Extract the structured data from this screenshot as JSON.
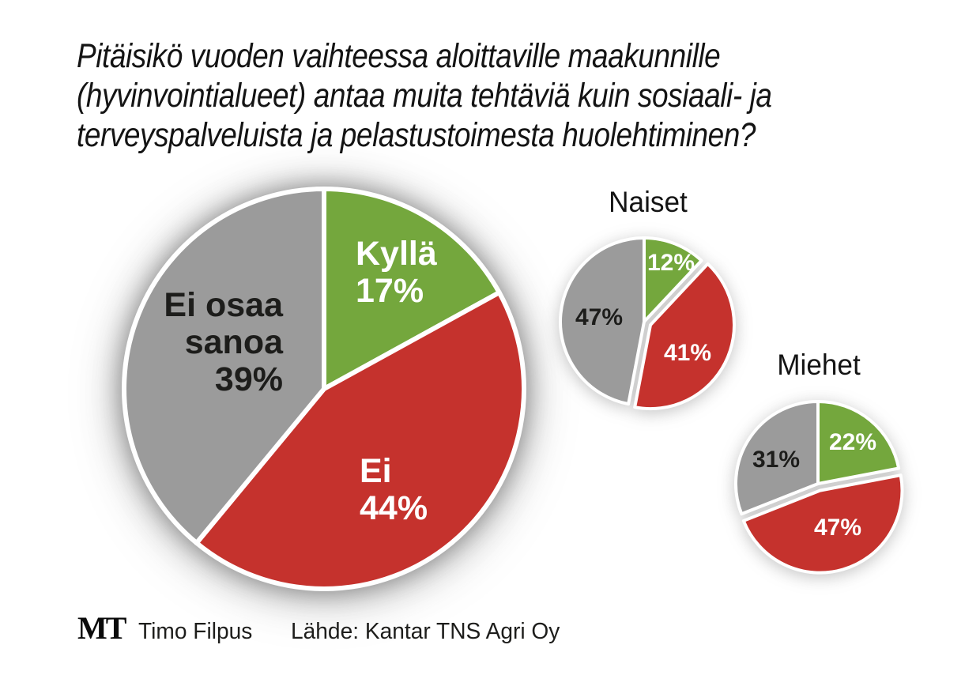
{
  "title": {
    "lines": [
      "Pitäisikö vuoden vaihteessa aloittaville maakunnille",
      "(hyvinvointialueet) antaa muita tehtäviä kuin sosiaali- ja",
      "terveyspalveluista ja pelastustoimesta huolehtiminen?"
    ]
  },
  "colors": {
    "yes": "#74a73d",
    "no": "#c5322d",
    "neutral": "#9b9b9b",
    "slice_border": "#ffffff",
    "label_light": "#ffffff",
    "label_dark": "#1d1d1b"
  },
  "chart_data": [
    {
      "type": "pie",
      "name": "kaikki",
      "title": "",
      "start_angle_deg": -90,
      "direction": "clockwise",
      "slices": [
        {
          "label": "Kyllä",
          "value": 17,
          "display": "17%",
          "color_key": "yes",
          "exploded": false
        },
        {
          "label": "Ei",
          "value": 44,
          "display": "44%",
          "color_key": "no",
          "exploded": false
        },
        {
          "label": "Ei osaa sanoa",
          "label_lines": [
            "Ei osaa",
            "sanoa"
          ],
          "value": 39,
          "display": "39%",
          "color_key": "neutral",
          "exploded": false
        }
      ]
    },
    {
      "type": "pie",
      "name": "naiset",
      "title": "Naiset",
      "start_angle_deg": -90,
      "direction": "clockwise",
      "slices": [
        {
          "label": "Kyllä",
          "value": 12,
          "display": "12%",
          "color_key": "yes",
          "exploded": false
        },
        {
          "label": "Ei",
          "value": 41,
          "display": "41%",
          "color_key": "no",
          "exploded": true
        },
        {
          "label": "Ei osaa sanoa",
          "value": 47,
          "display": "47%",
          "color_key": "neutral",
          "exploded": false
        }
      ]
    },
    {
      "type": "pie",
      "name": "miehet",
      "title": "Miehet",
      "start_angle_deg": -90,
      "direction": "clockwise",
      "slices": [
        {
          "label": "Kyllä",
          "value": 22,
          "display": "22%",
          "color_key": "yes",
          "exploded": false
        },
        {
          "label": "Ei",
          "value": 47,
          "display": "47%",
          "color_key": "no",
          "exploded": true
        },
        {
          "label": "Ei osaa sanoa",
          "value": 31,
          "display": "31%",
          "color_key": "neutral",
          "exploded": false
        }
      ]
    }
  ],
  "footer": {
    "logo": "MT",
    "author": "Timo Filpus",
    "source": "Lähde: Kantar TNS Agri Oy"
  }
}
